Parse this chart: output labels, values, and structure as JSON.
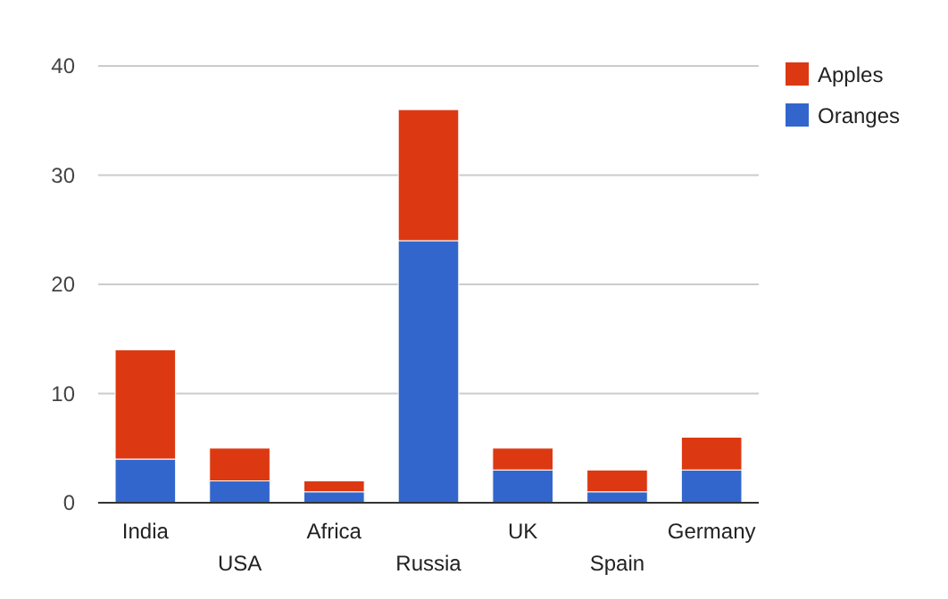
{
  "chart_data": {
    "type": "bar",
    "stacked": true,
    "categories": [
      "India",
      "USA",
      "Africa",
      "Russia",
      "UK",
      "Spain",
      "Germany"
    ],
    "series": [
      {
        "name": "Oranges",
        "color": "#3366cc",
        "values": [
          4,
          2,
          1,
          24,
          3,
          1,
          3
        ]
      },
      {
        "name": "Apples",
        "color": "#dc3912",
        "values": [
          10,
          3,
          1,
          12,
          2,
          2,
          3
        ]
      }
    ],
    "ylim": [
      0,
      40
    ],
    "yticks": [
      0,
      10,
      20,
      30,
      40
    ],
    "grid": "y",
    "legend": "top right"
  }
}
